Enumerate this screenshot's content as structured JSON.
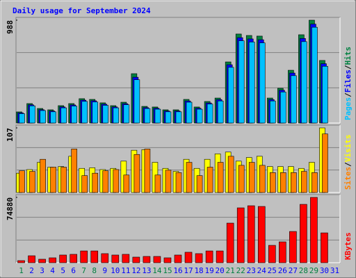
{
  "title": "Daily usage for September 2024",
  "legend_separator": "/",
  "chart_data": [
    {
      "type": "bar",
      "ylim": [
        0,
        988
      ],
      "yticks": [
        988
      ],
      "series": [
        {
          "name": "Hits",
          "color": "#008040",
          "values": [
            107,
            187,
            140,
            127,
            167,
            187,
            234,
            227,
            194,
            167,
            200,
            474,
            160,
            154,
            127,
            127,
            227,
            154,
            207,
            240,
            587,
            855,
            841,
            835,
            240,
            334,
            507,
            848,
            988,
            601,
            null
          ]
        },
        {
          "name": "Files",
          "color": "#0000ff",
          "values": [
            98,
            175,
            128,
            116,
            155,
            174,
            220,
            214,
            181,
            155,
            186,
            440,
            148,
            142,
            116,
            116,
            212,
            142,
            193,
            225,
            560,
            820,
            808,
            800,
            225,
            315,
            480,
            812,
            950,
            570,
            null
          ]
        },
        {
          "name": "Pages",
          "color": "#00c0ff",
          "values": [
            90,
            165,
            120,
            108,
            146,
            163,
            208,
            202,
            170,
            146,
            176,
            416,
            139,
            133,
            108,
            108,
            200,
            133,
            182,
            212,
            535,
            790,
            778,
            770,
            212,
            298,
            455,
            782,
            920,
            545,
            null
          ]
        }
      ]
    },
    {
      "type": "bar",
      "ylim": [
        0,
        107
      ],
      "yticks": [
        107
      ],
      "series": [
        {
          "name": "Visits",
          "color": "#ffff00",
          "values": [
            32,
            38,
            50,
            42,
            43,
            60,
            40,
            41,
            38,
            40,
            52,
            70,
            71,
            50,
            40,
            35,
            55,
            40,
            55,
            64,
            67,
            52,
            58,
            60,
            43,
            43,
            43,
            40,
            50,
            107,
            null
          ]
        },
        {
          "name": "Sites",
          "color": "#ff8000",
          "values": [
            36,
            35,
            55,
            42,
            42,
            72,
            28,
            32,
            36,
            38,
            29,
            63,
            72,
            29,
            37,
            33,
            50,
            28,
            42,
            50,
            60,
            45,
            50,
            45,
            33,
            33,
            33,
            35,
            33,
            97,
            null
          ]
        }
      ]
    },
    {
      "type": "bar",
      "ylim": [
        0,
        74880
      ],
      "yticks": [
        74880
      ],
      "categories": [
        "1",
        "2",
        "3",
        "4",
        "5",
        "6",
        "7",
        "8",
        "9",
        "10",
        "11",
        "12",
        "13",
        "14",
        "15",
        "16",
        "17",
        "18",
        "19",
        "20",
        "21",
        "22",
        "23",
        "24",
        "25",
        "26",
        "27",
        "28",
        "29",
        "30",
        "31"
      ],
      "label_colors": [
        "#008040",
        "#0000ff",
        "#0000ff",
        "#0000ff",
        "#0000ff",
        "#0000ff",
        "#008040",
        "#008040",
        "#0000ff",
        "#0000ff",
        "#0000ff",
        "#0000ff",
        "#0000ff",
        "#008040",
        "#008040",
        "#0000ff",
        "#0000ff",
        "#0000ff",
        "#0000ff",
        "#0000ff",
        "#008040",
        "#008040",
        "#0000ff",
        "#0000ff",
        "#0000ff",
        "#0000ff",
        "#0000ff",
        "#008040",
        "#008040",
        "#0000ff",
        "#0000ff"
      ],
      "series": [
        {
          "name": "KBytes",
          "color": "#ff0000",
          "values": [
            2390,
            7970,
            4000,
            5600,
            8800,
            9600,
            13500,
            13500,
            10400,
            8800,
            9600,
            6400,
            7200,
            7200,
            5600,
            8800,
            12000,
            10400,
            13500,
            13500,
            45400,
            62900,
            65300,
            64500,
            19900,
            23900,
            35800,
            66900,
            74880,
            34200,
            null
          ]
        }
      ]
    }
  ]
}
